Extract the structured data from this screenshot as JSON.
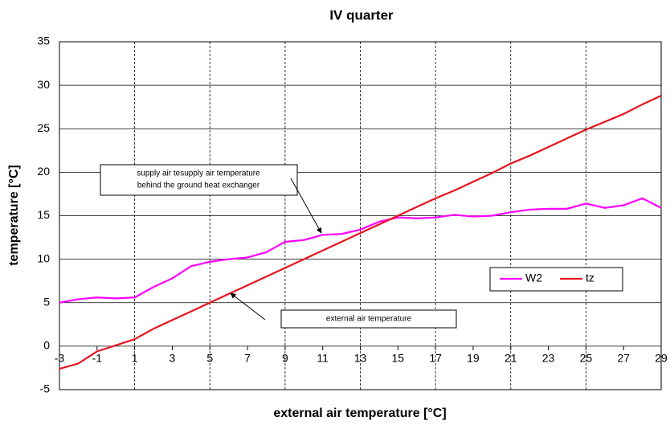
{
  "chart_data": {
    "type": "line",
    "title": "IV quarter",
    "xlabel": "external air temperature [°C]",
    "ylabel": "temperature [°C]",
    "x": [
      -3,
      -2,
      -1,
      0,
      1,
      2,
      3,
      4,
      5,
      6,
      7,
      8,
      9,
      10,
      11,
      12,
      13,
      14,
      15,
      16,
      17,
      18,
      19,
      20,
      21,
      22,
      23,
      24,
      25,
      26,
      27,
      28,
      29
    ],
    "series": [
      {
        "name": "W2",
        "color": "#ff00ff",
        "values": [
          5.0,
          5.4,
          5.6,
          5.5,
          5.6,
          6.8,
          7.8,
          9.2,
          9.7,
          10.0,
          10.2,
          10.8,
          12.0,
          12.2,
          12.8,
          12.9,
          13.4,
          14.3,
          14.8,
          14.7,
          14.8,
          15.1,
          14.9,
          15.0,
          15.4,
          15.7,
          15.8,
          15.8,
          16.4,
          15.9,
          16.2,
          17.0,
          15.9
        ]
      },
      {
        "name": "tz",
        "color": "#e8141e",
        "values": [
          -2.6,
          -2.0,
          -0.6,
          0.1,
          0.8,
          2.0,
          3.0,
          4.0,
          5.0,
          6.0,
          7.0,
          8.0,
          9.0,
          10.0,
          11.0,
          12.0,
          13.0,
          14.0,
          15.0,
          16.0,
          17.0,
          17.9,
          18.9,
          19.9,
          21.0,
          21.9,
          22.9,
          23.9,
          24.9,
          25.8,
          26.7,
          27.8,
          28.8
        ]
      }
    ],
    "xlim": [
      -3,
      29
    ],
    "xticks": [
      -3,
      -1,
      1,
      3,
      5,
      7,
      9,
      11,
      13,
      15,
      17,
      19,
      21,
      23,
      25,
      27,
      29
    ],
    "xgrid": [
      1,
      5,
      9,
      13,
      17,
      21,
      25
    ],
    "ylim": [
      -5,
      35
    ],
    "yticks": [
      -5,
      0,
      5,
      10,
      15,
      20,
      25,
      30,
      35
    ],
    "grid": true,
    "annotations": [
      {
        "lines": [
          "supply air tesupply air temperature",
          "behind the ground heat exchanger"
        ]
      },
      {
        "lines": [
          "external air temperature"
        ]
      }
    ]
  }
}
